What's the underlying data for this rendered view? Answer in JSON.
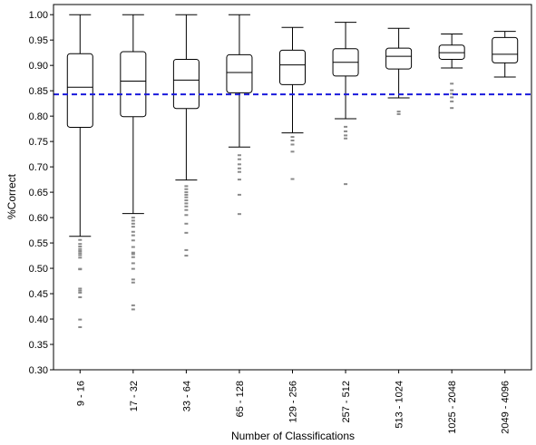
{
  "chart_data": {
    "type": "box",
    "xlabel": "Number of Classifications",
    "ylabel": "%Correct",
    "ylim": [
      0.3,
      1.02
    ],
    "yticks": [
      "0.30",
      "0.35",
      "0.40",
      "0.45",
      "0.50",
      "0.55",
      "0.60",
      "0.65",
      "0.70",
      "0.75",
      "0.80",
      "0.85",
      "0.90",
      "0.95",
      "1.00"
    ],
    "reference_line": {
      "value": 0.843,
      "color": "#1a1adc",
      "style": "dashed"
    },
    "colors": {
      "box": "#000000",
      "outlier": "#8a8a8a",
      "axis": "#000000"
    },
    "categories": [
      "9 - 16",
      "17 - 32",
      "33 - 64",
      "65 - 128",
      "129 - 256",
      "257 - 512",
      "513 - 1024",
      "1025 - 2048",
      "2049 - 4096"
    ],
    "boxes": [
      {
        "category": "9 - 16",
        "whisker_low": 0.563,
        "q1": 0.778,
        "median": 0.857,
        "q3": 0.923,
        "whisker_high": 1.0,
        "outliers": [
          0.384,
          0.399,
          0.443,
          0.452,
          0.456,
          0.46,
          0.498,
          0.499,
          0.521,
          0.526,
          0.53,
          0.534,
          0.538,
          0.543,
          0.548,
          0.556
        ]
      },
      {
        "category": "17 - 32",
        "whisker_low": 0.608,
        "q1": 0.799,
        "median": 0.869,
        "q3": 0.927,
        "whisker_high": 1.0,
        "outliers": [
          0.419,
          0.427,
          0.472,
          0.478,
          0.499,
          0.51,
          0.522,
          0.528,
          0.531,
          0.542,
          0.555,
          0.565,
          0.572,
          0.582,
          0.588,
          0.594,
          0.6
        ]
      },
      {
        "category": "33 - 64",
        "whisker_low": 0.674,
        "q1": 0.815,
        "median": 0.871,
        "q3": 0.912,
        "whisker_high": 1.0,
        "outliers": [
          0.525,
          0.536,
          0.57,
          0.588,
          0.605,
          0.615,
          0.622,
          0.628,
          0.634,
          0.64,
          0.645,
          0.65,
          0.656,
          0.662
        ]
      },
      {
        "category": "65 - 128",
        "whisker_low": 0.739,
        "q1": 0.846,
        "median": 0.886,
        "q3": 0.921,
        "whisker_high": 1.0,
        "outliers": [
          0.607,
          0.645,
          0.675,
          0.69,
          0.697,
          0.705,
          0.715,
          0.723
        ]
      },
      {
        "category": "129 - 256",
        "whisker_low": 0.767,
        "q1": 0.862,
        "median": 0.901,
        "q3": 0.93,
        "whisker_high": 0.975,
        "outliers": [
          0.676,
          0.73,
          0.744,
          0.752,
          0.759
        ]
      },
      {
        "category": "257 - 512",
        "whisker_low": 0.795,
        "q1": 0.879,
        "median": 0.906,
        "q3": 0.933,
        "whisker_high": 0.985,
        "outliers": [
          0.666,
          0.756,
          0.762,
          0.77,
          0.779
        ]
      },
      {
        "category": "513 - 1024",
        "whisker_low": 0.836,
        "q1": 0.893,
        "median": 0.918,
        "q3": 0.934,
        "whisker_high": 0.973,
        "outliers": [
          0.804,
          0.809
        ]
      },
      {
        "category": "1025 - 2048",
        "whisker_low": 0.895,
        "q1": 0.912,
        "median": 0.925,
        "q3": 0.94,
        "whisker_high": 0.962,
        "outliers": [
          0.816,
          0.829,
          0.837,
          0.844,
          0.851,
          0.864
        ]
      },
      {
        "category": "2049 - 4096",
        "whisker_low": 0.877,
        "q1": 0.905,
        "median": 0.922,
        "q3": 0.955,
        "whisker_high": 0.967,
        "outliers": []
      }
    ]
  }
}
